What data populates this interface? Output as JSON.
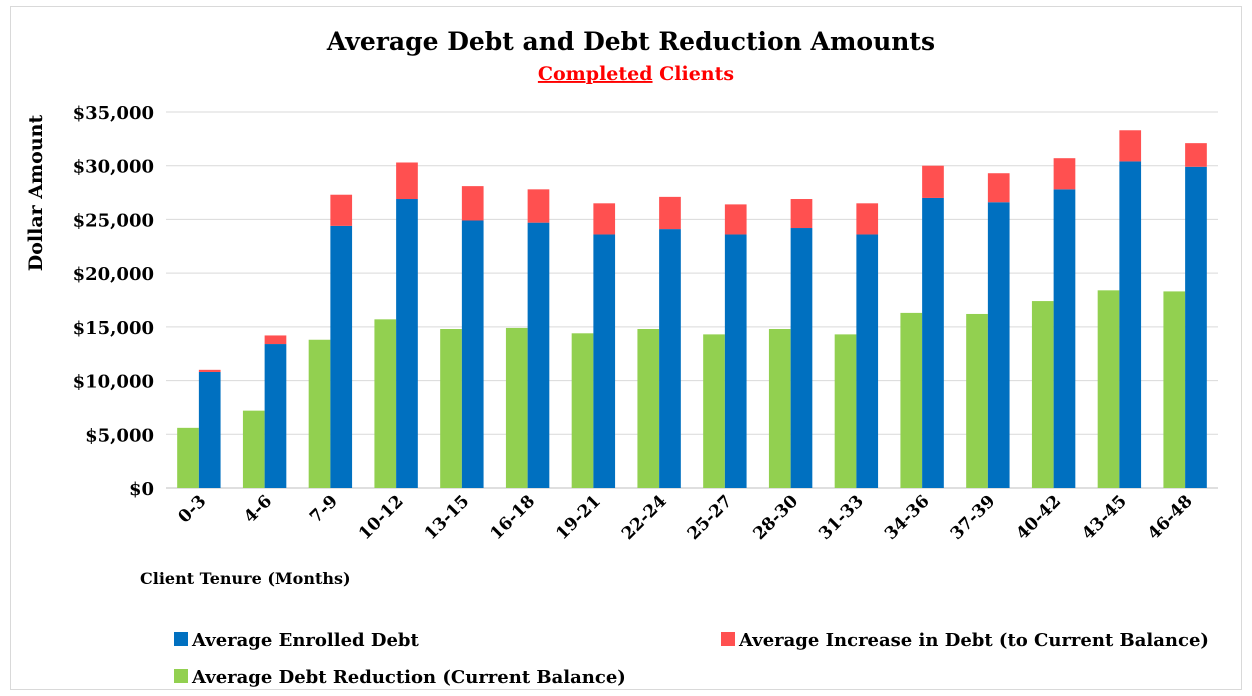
{
  "chart_data": {
    "type": "bar",
    "title": "Average Debt and Debt Reduction Amounts",
    "subtitle_underlined": "Completed",
    "subtitle_rest": " Clients",
    "xlabel": "Client Tenure (Months)",
    "ylabel": "Dollar Amount",
    "ylim": [
      0,
      35000
    ],
    "yticks": [
      "$0",
      "$5,000",
      "$10,000",
      "$15,000",
      "$20,000",
      "$25,000",
      "$30,000",
      "$35,000"
    ],
    "grid": true,
    "legend_position": "bottom",
    "categories": [
      "0-3",
      "4-6",
      "7-9",
      "10-12",
      "13-15",
      "16-18",
      "19-21",
      "22-24",
      "25-27",
      "28-30",
      "31-33",
      "34-36",
      "37-39",
      "40-42",
      "43-45",
      "46-48"
    ],
    "series": [
      {
        "name": "Average Debt Reduction (Current Balance)",
        "color": "#92d050",
        "values": [
          5600,
          7200,
          13800,
          15700,
          14800,
          14900,
          14400,
          14800,
          14300,
          14800,
          14300,
          16300,
          16200,
          17400,
          18400,
          18300
        ]
      },
      {
        "name": "Average Enrolled Debt",
        "color": "#0070c0",
        "values": [
          10800,
          13400,
          24400,
          26900,
          24900,
          24700,
          23600,
          24100,
          23600,
          24200,
          23600,
          27000,
          26600,
          27800,
          30400,
          29900
        ]
      },
      {
        "name": "Average Increase in Debt (to Current Balance)",
        "color": "#ff5050",
        "stacked_on": "Average Enrolled Debt",
        "values": [
          200,
          800,
          2900,
          3400,
          3200,
          3100,
          2900,
          3000,
          2800,
          2700,
          2900,
          3000,
          2700,
          2900,
          2900,
          2200
        ]
      }
    ],
    "legend": [
      {
        "label": "Average Enrolled Debt",
        "color": "#0070c0"
      },
      {
        "label": "Average Increase in Debt (to Current Balance)",
        "color": "#ff5050"
      },
      {
        "label": "Average Debt Reduction (Current Balance)",
        "color": "#92d050"
      }
    ]
  }
}
